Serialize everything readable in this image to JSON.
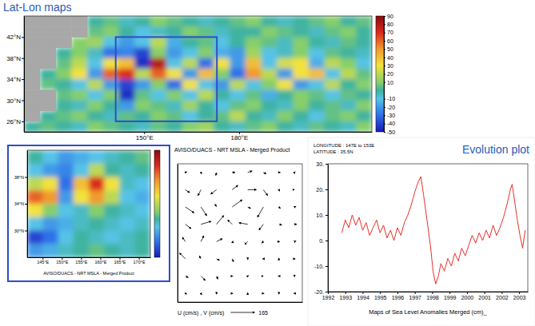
{
  "headings": {
    "maps": "Lat-Lon maps",
    "evolution": "Evolution plot"
  },
  "chart_data": [
    {
      "type": "heatmap",
      "title": "AVISO/DUACS - NRT MSLA - Merged Product",
      "x": [
        114.5,
        119.5,
        124.5,
        129.5,
        134.5,
        139.5,
        144.5,
        149.5,
        154.5,
        159.5,
        164.5,
        169.5,
        174.5,
        179.5,
        184.5,
        189.5,
        194.5,
        199.5,
        204.5,
        209.5,
        214.5,
        219.5
      ],
      "y": [
        45,
        43,
        41,
        39,
        37,
        35,
        33,
        31,
        29,
        27,
        25
      ],
      "z": [
        [
          null,
          null,
          null,
          null,
          0,
          5,
          -5,
          0,
          10,
          5,
          0,
          -5,
          0,
          5,
          10,
          0,
          -5,
          0,
          5,
          10,
          0,
          5
        ],
        [
          null,
          null,
          null,
          null,
          5,
          10,
          0,
          -10,
          -5,
          0,
          10,
          5,
          -5,
          0,
          0,
          10,
          5,
          0,
          -5,
          5,
          10,
          0
        ],
        [
          null,
          null,
          null,
          10,
          15,
          -10,
          -20,
          -10,
          20,
          -15,
          0,
          5,
          -10,
          0,
          10,
          5,
          -5,
          10,
          0,
          -5,
          5,
          0
        ],
        [
          null,
          null,
          0,
          10,
          -5,
          -30,
          -25,
          -40,
          10,
          -20,
          -10,
          10,
          -15,
          -20,
          15,
          -10,
          -5,
          10,
          -10,
          5,
          0,
          -5
        ],
        [
          null,
          null,
          5,
          20,
          -10,
          30,
          40,
          -45,
          80,
          -10,
          20,
          -30,
          30,
          -20,
          40,
          -10,
          25,
          30,
          -15,
          20,
          10,
          -10
        ],
        [
          null,
          0,
          10,
          30,
          -20,
          60,
          70,
          20,
          60,
          30,
          -20,
          40,
          10,
          -30,
          50,
          20,
          -20,
          30,
          40,
          -10,
          20,
          5
        ],
        [
          null,
          5,
          0,
          -10,
          20,
          -20,
          -40,
          -20,
          10,
          -30,
          30,
          -10,
          -20,
          20,
          -10,
          10,
          30,
          -20,
          -10,
          20,
          0,
          10
        ],
        [
          null,
          null,
          5,
          10,
          -10,
          10,
          -45,
          5,
          -10,
          10,
          -10,
          20,
          0,
          -10,
          5,
          -15,
          0,
          10,
          5,
          -10,
          5,
          0
        ],
        [
          null,
          null,
          0,
          -5,
          10,
          0,
          -20,
          10,
          5,
          -5,
          15,
          0,
          -10,
          5,
          10,
          0,
          -5,
          10,
          0,
          5,
          -5,
          10
        ],
        [
          null,
          0,
          5,
          10,
          0,
          -5,
          5,
          0,
          10,
          5,
          -10,
          0,
          5,
          20,
          0,
          -5,
          10,
          0,
          -10,
          5,
          10,
          0
        ],
        [
          0,
          5,
          0,
          -5,
          10,
          5,
          0,
          -5,
          5,
          0,
          10,
          15,
          0,
          -5,
          5,
          10,
          0,
          -5,
          5,
          0,
          -5,
          10
        ]
      ],
      "xlim": [
        112,
        222
      ],
      "xticks": [
        {
          "value": 150,
          "label": "150°E"
        },
        {
          "value": 180,
          "label": "180°E"
        }
      ],
      "ylim": [
        24,
        46
      ],
      "yticks": [
        {
          "value": 26,
          "label": "26°N"
        },
        {
          "value": 30,
          "label": "30°N"
        },
        {
          "value": 34,
          "label": "34°N"
        },
        {
          "value": 38,
          "label": "38°N"
        },
        {
          "value": 42,
          "label": "42°N"
        }
      ],
      "colorbar": {
        "range": [
          -50,
          90
        ],
        "ticks": [
          -50,
          -40,
          -30,
          -20,
          -10,
          10,
          20,
          30,
          40,
          50,
          60,
          70,
          80,
          90
        ]
      }
    },
    {
      "type": "heatmap",
      "title": "AVISO/DUACS - NRT MSLA - Merged Product",
      "x": [
        143,
        147,
        151,
        155,
        159,
        163,
        167,
        171
      ],
      "y": [
        41,
        39,
        37,
        35,
        33,
        31,
        29,
        27
      ],
      "z": [
        [
          0,
          -10,
          -20,
          -15,
          -10,
          -5,
          0,
          5
        ],
        [
          -10,
          -20,
          -25,
          -10,
          20,
          0,
          -5,
          0
        ],
        [
          20,
          30,
          -30,
          40,
          70,
          30,
          -5,
          -10
        ],
        [
          60,
          50,
          -20,
          30,
          50,
          20,
          -10,
          -15
        ],
        [
          30,
          10,
          -10,
          -5,
          10,
          0,
          -5,
          -10
        ],
        [
          -10,
          -20,
          -15,
          -5,
          0,
          -5,
          -10,
          -5
        ],
        [
          -40,
          -30,
          -10,
          0,
          -5,
          -10,
          -5,
          0
        ],
        [
          -20,
          -15,
          -5,
          0,
          5,
          0,
          -5,
          0
        ]
      ],
      "xlim": [
        141,
        173
      ],
      "xticks": [
        {
          "value": 145,
          "label": "145°E"
        },
        {
          "value": 150,
          "label": "150°E"
        },
        {
          "value": 155,
          "label": "155°E"
        },
        {
          "value": 160,
          "label": "160°E"
        },
        {
          "value": 165,
          "label": "165°E"
        },
        {
          "value": 170,
          "label": "170°E"
        }
      ],
      "ylim": [
        26,
        42
      ],
      "yticks": [
        {
          "value": 30,
          "label": "30°N"
        },
        {
          "value": 34,
          "label": "34°N"
        },
        {
          "value": 38,
          "label": "38°N"
        }
      ],
      "colorbar": {
        "range": [
          -50,
          90
        ]
      }
    },
    {
      "type": "vector",
      "title": "U (cm/s) , V (cm/s)",
      "x": [
        143,
        147,
        151,
        155,
        159,
        163,
        167,
        171
      ],
      "y": [
        41,
        39,
        37,
        35,
        33,
        31,
        29,
        27
      ],
      "u": [
        [
          10,
          5,
          -5,
          20,
          30,
          20,
          10,
          5
        ],
        [
          30,
          -20,
          -40,
          40,
          60,
          30,
          5,
          0
        ],
        [
          60,
          40,
          -10,
          70,
          20,
          -40,
          10,
          10
        ],
        [
          40,
          70,
          50,
          -30,
          -60,
          -30,
          20,
          15
        ],
        [
          -20,
          20,
          40,
          10,
          -20,
          -10,
          5,
          10
        ],
        [
          -40,
          -10,
          20,
          10,
          0,
          -5,
          0,
          5
        ],
        [
          20,
          30,
          10,
          5,
          5,
          0,
          -5,
          0
        ],
        [
          10,
          5,
          0,
          5,
          0,
          5,
          0,
          -5
        ]
      ],
      "v": [
        [
          5,
          -10,
          -20,
          0,
          10,
          -10,
          0,
          5
        ],
        [
          -20,
          -40,
          -30,
          30,
          0,
          -40,
          -10,
          0
        ],
        [
          -40,
          -60,
          20,
          50,
          -10,
          -70,
          -10,
          5
        ],
        [
          -30,
          20,
          60,
          30,
          10,
          -40,
          -5,
          0
        ],
        [
          30,
          40,
          20,
          -10,
          -20,
          -10,
          0,
          5
        ],
        [
          40,
          20,
          -10,
          -20,
          -5,
          0,
          5,
          0
        ],
        [
          -10,
          -30,
          -20,
          0,
          5,
          0,
          0,
          -5
        ],
        [
          -5,
          -10,
          -5,
          0,
          5,
          0,
          -5,
          0
        ]
      ],
      "reference": 165,
      "xlim": [
        141,
        173
      ],
      "ylim": [
        26,
        42
      ],
      "tick_labels": false
    },
    {
      "type": "line",
      "title": "Maps of Sea Level Anomalies Merged (cm)_",
      "annotations": [
        "LONGITUDE : 147E to 153E",
        "LATITUDE : 35.5N"
      ],
      "color": "#e8302a",
      "x": [
        1992.8,
        1993.0,
        1993.2,
        1993.4,
        1993.6,
        1993.8,
        1994.0,
        1994.2,
        1994.4,
        1994.6,
        1994.8,
        1995.0,
        1995.2,
        1995.4,
        1995.6,
        1995.8,
        1996.0,
        1996.2,
        1996.4,
        1996.6,
        1996.8,
        1997.0,
        1997.2,
        1997.35,
        1997.5,
        1997.7,
        1997.9,
        1998.05,
        1998.2,
        1998.35,
        1998.5,
        1998.7,
        1998.9,
        1999.1,
        1999.3,
        1999.5,
        1999.7,
        1999.9,
        2000.1,
        2000.3,
        2000.5,
        2000.7,
        2000.9,
        2001.1,
        2001.3,
        2001.5,
        2001.7,
        2001.9,
        2002.1,
        2002.3,
        2002.5,
        2002.6,
        2002.75,
        2002.9,
        2003.05,
        2003.2,
        2003.35
      ],
      "values": [
        3,
        8,
        5,
        10,
        6,
        9,
        4,
        7,
        2,
        5,
        8,
        3,
        6,
        1,
        4,
        0,
        5,
        2,
        7,
        10,
        14,
        19,
        23,
        25,
        18,
        8,
        -2,
        -12,
        -17,
        -14,
        -9,
        -12,
        -7,
        -10,
        -5,
        -8,
        -3,
        -6,
        -2,
        2,
        -1,
        3,
        0,
        4,
        1,
        6,
        2,
        5,
        9,
        14,
        20,
        22,
        15,
        8,
        2,
        -3,
        4
      ],
      "xlim": [
        1992,
        2003.5
      ],
      "xticks": [
        1992,
        1993,
        1994,
        1995,
        1996,
        1997,
        1998,
        1999,
        2000,
        2001,
        2002,
        2003
      ],
      "ylim": [
        -20,
        30
      ],
      "yticks": [
        {
          "value": -20,
          "label": "-20."
        },
        {
          "value": -10,
          "label": "-10."
        },
        {
          "value": 0,
          "label": "0."
        },
        {
          "value": 10,
          "label": "10."
        },
        {
          "value": 20,
          "label": "20."
        },
        {
          "value": 30,
          "label": "30."
        }
      ]
    }
  ]
}
